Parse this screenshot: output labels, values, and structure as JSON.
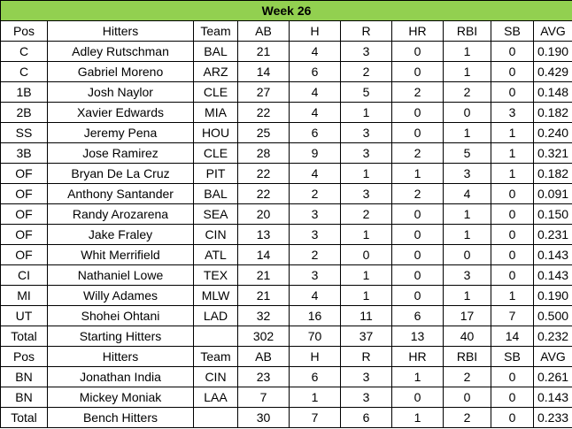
{
  "title": "Week 26",
  "colors": {
    "header_bg": "#92d050"
  },
  "columns": [
    "Pos",
    "Hitters",
    "Team",
    "AB",
    "H",
    "R",
    "HR",
    "RBI",
    "SB",
    "AVG"
  ],
  "starters": [
    [
      "C",
      "Adley Rutschman",
      "BAL",
      "21",
      "4",
      "3",
      "0",
      "1",
      "0",
      "0.190"
    ],
    [
      "C",
      "Gabriel Moreno",
      "ARZ",
      "14",
      "6",
      "2",
      "0",
      "1",
      "0",
      "0.429"
    ],
    [
      "1B",
      "Josh Naylor",
      "CLE",
      "27",
      "4",
      "5",
      "2",
      "2",
      "0",
      "0.148"
    ],
    [
      "2B",
      "Xavier Edwards",
      "MIA",
      "22",
      "4",
      "1",
      "0",
      "0",
      "3",
      "0.182"
    ],
    [
      "SS",
      "Jeremy Pena",
      "HOU",
      "25",
      "6",
      "3",
      "0",
      "1",
      "1",
      "0.240"
    ],
    [
      "3B",
      "Jose Ramirez",
      "CLE",
      "28",
      "9",
      "3",
      "2",
      "5",
      "1",
      "0.321"
    ],
    [
      "OF",
      "Bryan De La Cruz",
      "PIT",
      "22",
      "4",
      "1",
      "1",
      "3",
      "1",
      "0.182"
    ],
    [
      "OF",
      "Anthony Santander",
      "BAL",
      "22",
      "2",
      "3",
      "2",
      "4",
      "0",
      "0.091"
    ],
    [
      "OF",
      "Randy Arozarena",
      "SEA",
      "20",
      "3",
      "2",
      "0",
      "1",
      "0",
      "0.150"
    ],
    [
      "OF",
      "Jake Fraley",
      "CIN",
      "13",
      "3",
      "1",
      "0",
      "1",
      "0",
      "0.231"
    ],
    [
      "OF",
      "Whit Merrifield",
      "ATL",
      "14",
      "2",
      "0",
      "0",
      "0",
      "0",
      "0.143"
    ],
    [
      "CI",
      "Nathaniel Lowe",
      "TEX",
      "21",
      "3",
      "1",
      "0",
      "3",
      "0",
      "0.143"
    ],
    [
      "MI",
      "Willy Adames",
      "MLW",
      "21",
      "4",
      "1",
      "0",
      "1",
      "1",
      "0.190"
    ],
    [
      "UT",
      "Shohei Ohtani",
      "LAD",
      "32",
      "16",
      "11",
      "6",
      "17",
      "7",
      "0.500"
    ]
  ],
  "starters_total": [
    "Total",
    "Starting Hitters",
    "",
    "302",
    "70",
    "37",
    "13",
    "40",
    "14",
    "0.232"
  ],
  "bench_columns": [
    "Pos",
    "Hitters",
    "Team",
    "AB",
    "H",
    "R",
    "HR",
    "RBI",
    "SB",
    "AVG"
  ],
  "bench": [
    [
      "BN",
      "Jonathan India",
      "CIN",
      "23",
      "6",
      "3",
      "1",
      "2",
      "0",
      "0.261"
    ],
    [
      "BN",
      "Mickey Moniak",
      "LAA",
      "7",
      "1",
      "3",
      "0",
      "0",
      "0",
      "0.143"
    ]
  ],
  "bench_total": [
    "Total",
    "Bench Hitters",
    "",
    "30",
    "7",
    "6",
    "1",
    "2",
    "0",
    "0.233"
  ]
}
